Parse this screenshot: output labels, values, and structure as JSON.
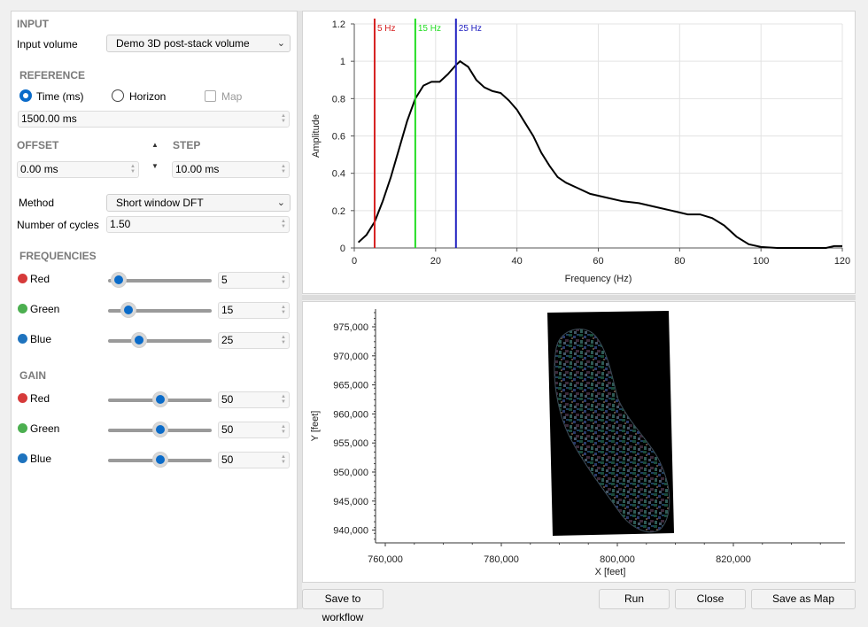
{
  "left": {
    "input_title": "INPUT",
    "input_volume_label": "Input volume",
    "input_volume_value": "Demo 3D post-stack volume",
    "reference_title": "REFERENCE",
    "ref_time": "Time (ms)",
    "ref_horizon": "Horizon",
    "ref_map": "Map",
    "ref_value": "1500.00 ms",
    "offset_title": "OFFSET",
    "offset_value": "0.00 ms",
    "step_title": "STEP",
    "step_value": "10.00 ms",
    "method_label": "Method",
    "method_value": "Short window DFT",
    "cycles_label": "Number of cycles",
    "cycles_value": "1.50",
    "frequencies_title": "FREQUENCIES",
    "freq": [
      {
        "label": "Red",
        "value": "5",
        "color": "#d63a3a",
        "level": 0.1
      },
      {
        "label": "Green",
        "value": "15",
        "color": "#4caf50",
        "level": 0.2
      },
      {
        "label": "Blue",
        "value": "25",
        "color": "#1e73be",
        "level": 0.3
      }
    ],
    "gain_title": "GAIN",
    "gain": [
      {
        "label": "Red",
        "value": "50",
        "color": "#d63a3a",
        "level": 0.5
      },
      {
        "label": "Green",
        "value": "50",
        "color": "#4caf50",
        "level": 0.5
      },
      {
        "label": "Blue",
        "value": "50",
        "color": "#1e73be",
        "level": 0.5
      }
    ]
  },
  "chart_data": [
    {
      "type": "line",
      "xlabel": "Frequency (Hz)",
      "ylabel": "Amplitude",
      "xlim": [
        0,
        120
      ],
      "ylim": [
        0,
        1.2
      ],
      "x_ticks": [
        "0",
        "20",
        "40",
        "60",
        "80",
        "100",
        "120"
      ],
      "y_ticks": [
        "0",
        "0.2",
        "0.4",
        "0.6",
        "0.8",
        "1",
        "1.2"
      ],
      "grid": true,
      "series": [
        {
          "values": [
            [
              1,
              0.03
            ],
            [
              3,
              0.07
            ],
            [
              5,
              0.14
            ],
            [
              7,
              0.25
            ],
            [
              9,
              0.38
            ],
            [
              11,
              0.53
            ],
            [
              13,
              0.68
            ],
            [
              15,
              0.8
            ],
            [
              17,
              0.87
            ],
            [
              19,
              0.89
            ],
            [
              21,
              0.89
            ],
            [
              23,
              0.93
            ],
            [
              25,
              0.98
            ],
            [
              26,
              1.0
            ],
            [
              28,
              0.97
            ],
            [
              30,
              0.9
            ],
            [
              32,
              0.86
            ],
            [
              34,
              0.84
            ],
            [
              36,
              0.83
            ],
            [
              38,
              0.79
            ],
            [
              40,
              0.74
            ],
            [
              42,
              0.67
            ],
            [
              44,
              0.6
            ],
            [
              46,
              0.51
            ],
            [
              48,
              0.44
            ],
            [
              50,
              0.38
            ],
            [
              52,
              0.35
            ],
            [
              55,
              0.32
            ],
            [
              58,
              0.29
            ],
            [
              62,
              0.27
            ],
            [
              66,
              0.25
            ],
            [
              70,
              0.24
            ],
            [
              74,
              0.22
            ],
            [
              78,
              0.2
            ],
            [
              82,
              0.18
            ],
            [
              85,
              0.18
            ],
            [
              88,
              0.16
            ],
            [
              91,
              0.12
            ],
            [
              94,
              0.06
            ],
            [
              97,
              0.02
            ],
            [
              100,
              0.005
            ],
            [
              104,
              0.0
            ],
            [
              110,
              0.0
            ],
            [
              116,
              0.0
            ],
            [
              118,
              0.01
            ],
            [
              120,
              0.01
            ]
          ]
        }
      ],
      "markers": [
        {
          "x": 5,
          "label": "5 Hz",
          "color": "#d62020"
        },
        {
          "x": 15,
          "label": "15 Hz",
          "color": "#22dd22"
        },
        {
          "x": 25,
          "label": "25 Hz",
          "color": "#2020c0"
        }
      ]
    },
    {
      "type": "heatmap",
      "xlabel": "X [feet]",
      "ylabel": "Y [feet]",
      "x_ticks": [
        "760,000",
        "780,000",
        "800,000",
        "820,000"
      ],
      "y_ticks": [
        "975,000",
        "970,000",
        "965,000",
        "960,000",
        "955,000",
        "950,000",
        "945,000",
        "940,000"
      ]
    }
  ],
  "buttons": {
    "save_workflow": "Save to workflow",
    "run": "Run",
    "close": "Close",
    "save_map": "Save as Map"
  }
}
